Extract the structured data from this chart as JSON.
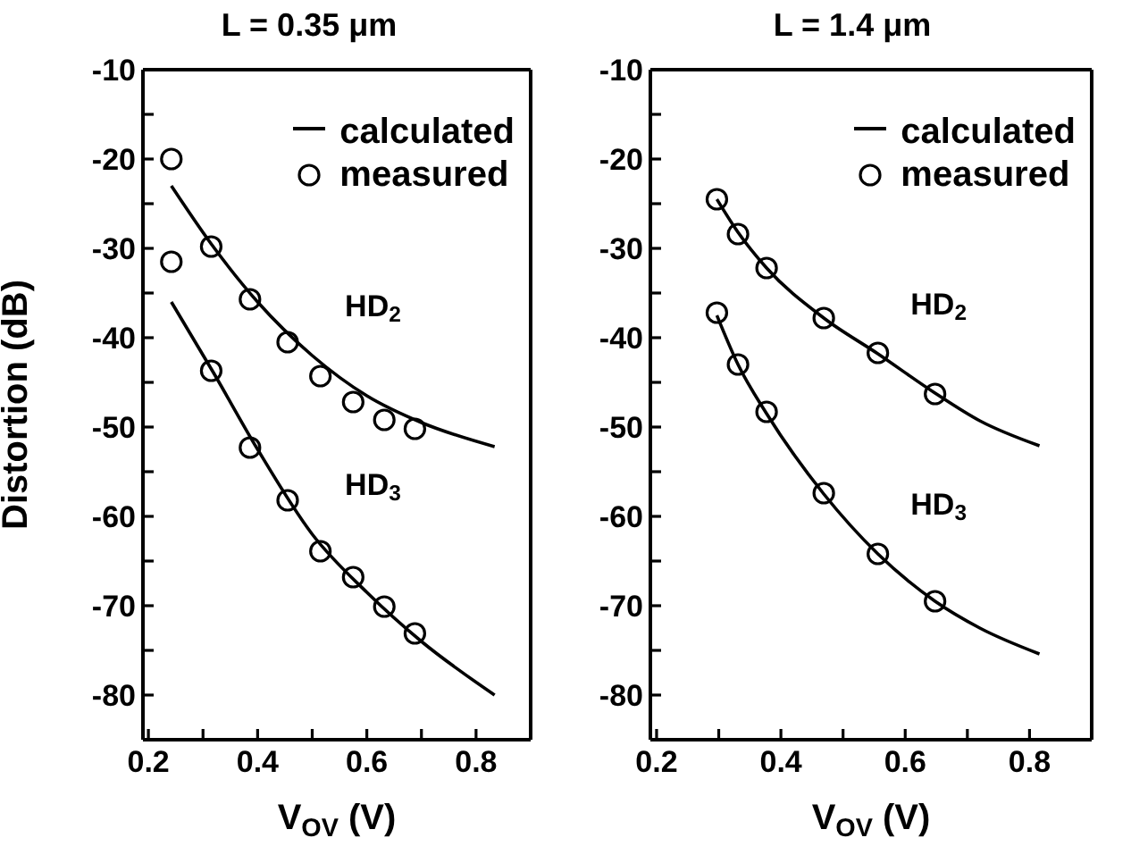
{
  "chart_data": [
    {
      "type": "line",
      "title": "L = 0.35 μm",
      "xlabel": "V$_{OV}$ (V)",
      "ylabel": "Distortion (dB)",
      "xlim": [
        0.19,
        0.9
      ],
      "ylim": [
        -85,
        -10
      ],
      "xticks": [
        0.2,
        {
          "value": 0.3,
          "label": null
        },
        0.4,
        {
          "value": 0.5,
          "label": null
        },
        0.6,
        {
          "value": 0.7,
          "label": null
        },
        0.8
      ],
      "yticks": [
        -10,
        {
          "value": -15,
          "label": null
        },
        -20,
        {
          "value": -25,
          "label": null
        },
        -30,
        {
          "value": -35,
          "label": null
        },
        -40,
        {
          "value": -45,
          "label": null
        },
        -50,
        {
          "value": -55,
          "label": null
        },
        -60,
        {
          "value": -65,
          "label": null
        },
        -70,
        {
          "value": -75,
          "label": null
        },
        -80
      ],
      "legend": "top right",
      "annotations": [
        "HD$_{2}$",
        "HD$_{3}$"
      ],
      "series": [
        {
          "name": "calculated",
          "color": "#000000",
          "marker": "none",
          "x": [
            0.242,
            0.315,
            0.4,
            0.5,
            0.6,
            0.7,
            0.834
          ],
          "values": [
            -23,
            -29.5,
            -36,
            -42,
            -46.5,
            -49.5,
            -52.2
          ]
        },
        {
          "color": "#000000",
          "marker": "none",
          "x": [
            0.242,
            0.32,
            0.4,
            0.5,
            0.6,
            0.7,
            0.834
          ],
          "values": [
            -36,
            -44,
            -52.5,
            -62,
            -68.5,
            -74,
            -80
          ]
        },
        {
          "name": "measured",
          "type": "scatter",
          "color": "#000000",
          "marker": "circle",
          "x": [
            0.242,
            0.315,
            0.386,
            0.455,
            0.515,
            0.575,
            0.632,
            0.688
          ],
          "values": [
            -20,
            -29.8,
            -35.7,
            -40.5,
            -44.3,
            -47.2,
            -49.2,
            -50.2
          ]
        },
        {
          "type": "scatter",
          "color": "#000000",
          "marker": "circle",
          "x": [
            0.242,
            0.315,
            0.386,
            0.455,
            0.515,
            0.575,
            0.632,
            0.688
          ],
          "values": [
            -31.5,
            -43.7,
            -52.3,
            -58.2,
            -63.9,
            -66.8,
            -70.1,
            -73.1
          ]
        }
      ]
    },
    {
      "type": "line",
      "title": "L = 1.4 μm",
      "xlabel": "V$_{OV}$ (V)",
      "xlim": [
        0.19,
        0.9
      ],
      "ylim": [
        -85,
        -10
      ],
      "xticks": [
        0.2,
        {
          "value": 0.3,
          "label": null
        },
        0.4,
        {
          "value": 0.5,
          "label": null
        },
        0.6,
        {
          "value": 0.7,
          "label": null
        },
        0.8
      ],
      "yticks": [
        -10,
        {
          "value": -15,
          "label": null
        },
        -20,
        {
          "value": -25,
          "label": null
        },
        -30,
        {
          "value": -35,
          "label": null
        },
        -40,
        {
          "value": -45,
          "label": null
        },
        -50,
        {
          "value": -55,
          "label": null
        },
        -60,
        {
          "value": -65,
          "label": null
        },
        -70,
        {
          "value": -75,
          "label": null
        },
        -80
      ],
      "legend": "top right",
      "annotations": [
        "HD$_{2}$",
        "HD$_{3}$"
      ],
      "series": [
        {
          "name": "calculated",
          "color": "#000000",
          "marker": "none",
          "x": [
            0.297,
            0.331,
            0.377,
            0.469,
            0.556,
            0.648,
            0.72,
            0.816
          ],
          "values": [
            -24.5,
            -28.2,
            -32.2,
            -37.8,
            -41.8,
            -46.2,
            -49.3,
            -52.1
          ]
        },
        {
          "color": "#000000",
          "marker": "none",
          "x": [
            0.297,
            0.331,
            0.377,
            0.469,
            0.556,
            0.648,
            0.72,
            0.816
          ],
          "values": [
            -37.5,
            -43,
            -48.5,
            -57.5,
            -64.2,
            -69.5,
            -72.5,
            -75.4
          ]
        },
        {
          "name": "measured",
          "type": "scatter",
          "color": "#000000",
          "marker": "circle",
          "x": [
            0.297,
            0.331,
            0.377,
            0.469,
            0.556,
            0.648
          ],
          "values": [
            -24.5,
            -28.4,
            -32.2,
            -37.8,
            -41.7,
            -46.3
          ]
        },
        {
          "type": "scatter",
          "color": "#000000",
          "marker": "circle",
          "x": [
            0.297,
            0.331,
            0.377,
            0.469,
            0.556,
            0.648
          ],
          "values": [
            -37.2,
            -43,
            -48.3,
            -57.4,
            -64.2,
            -69.5
          ]
        }
      ]
    }
  ]
}
